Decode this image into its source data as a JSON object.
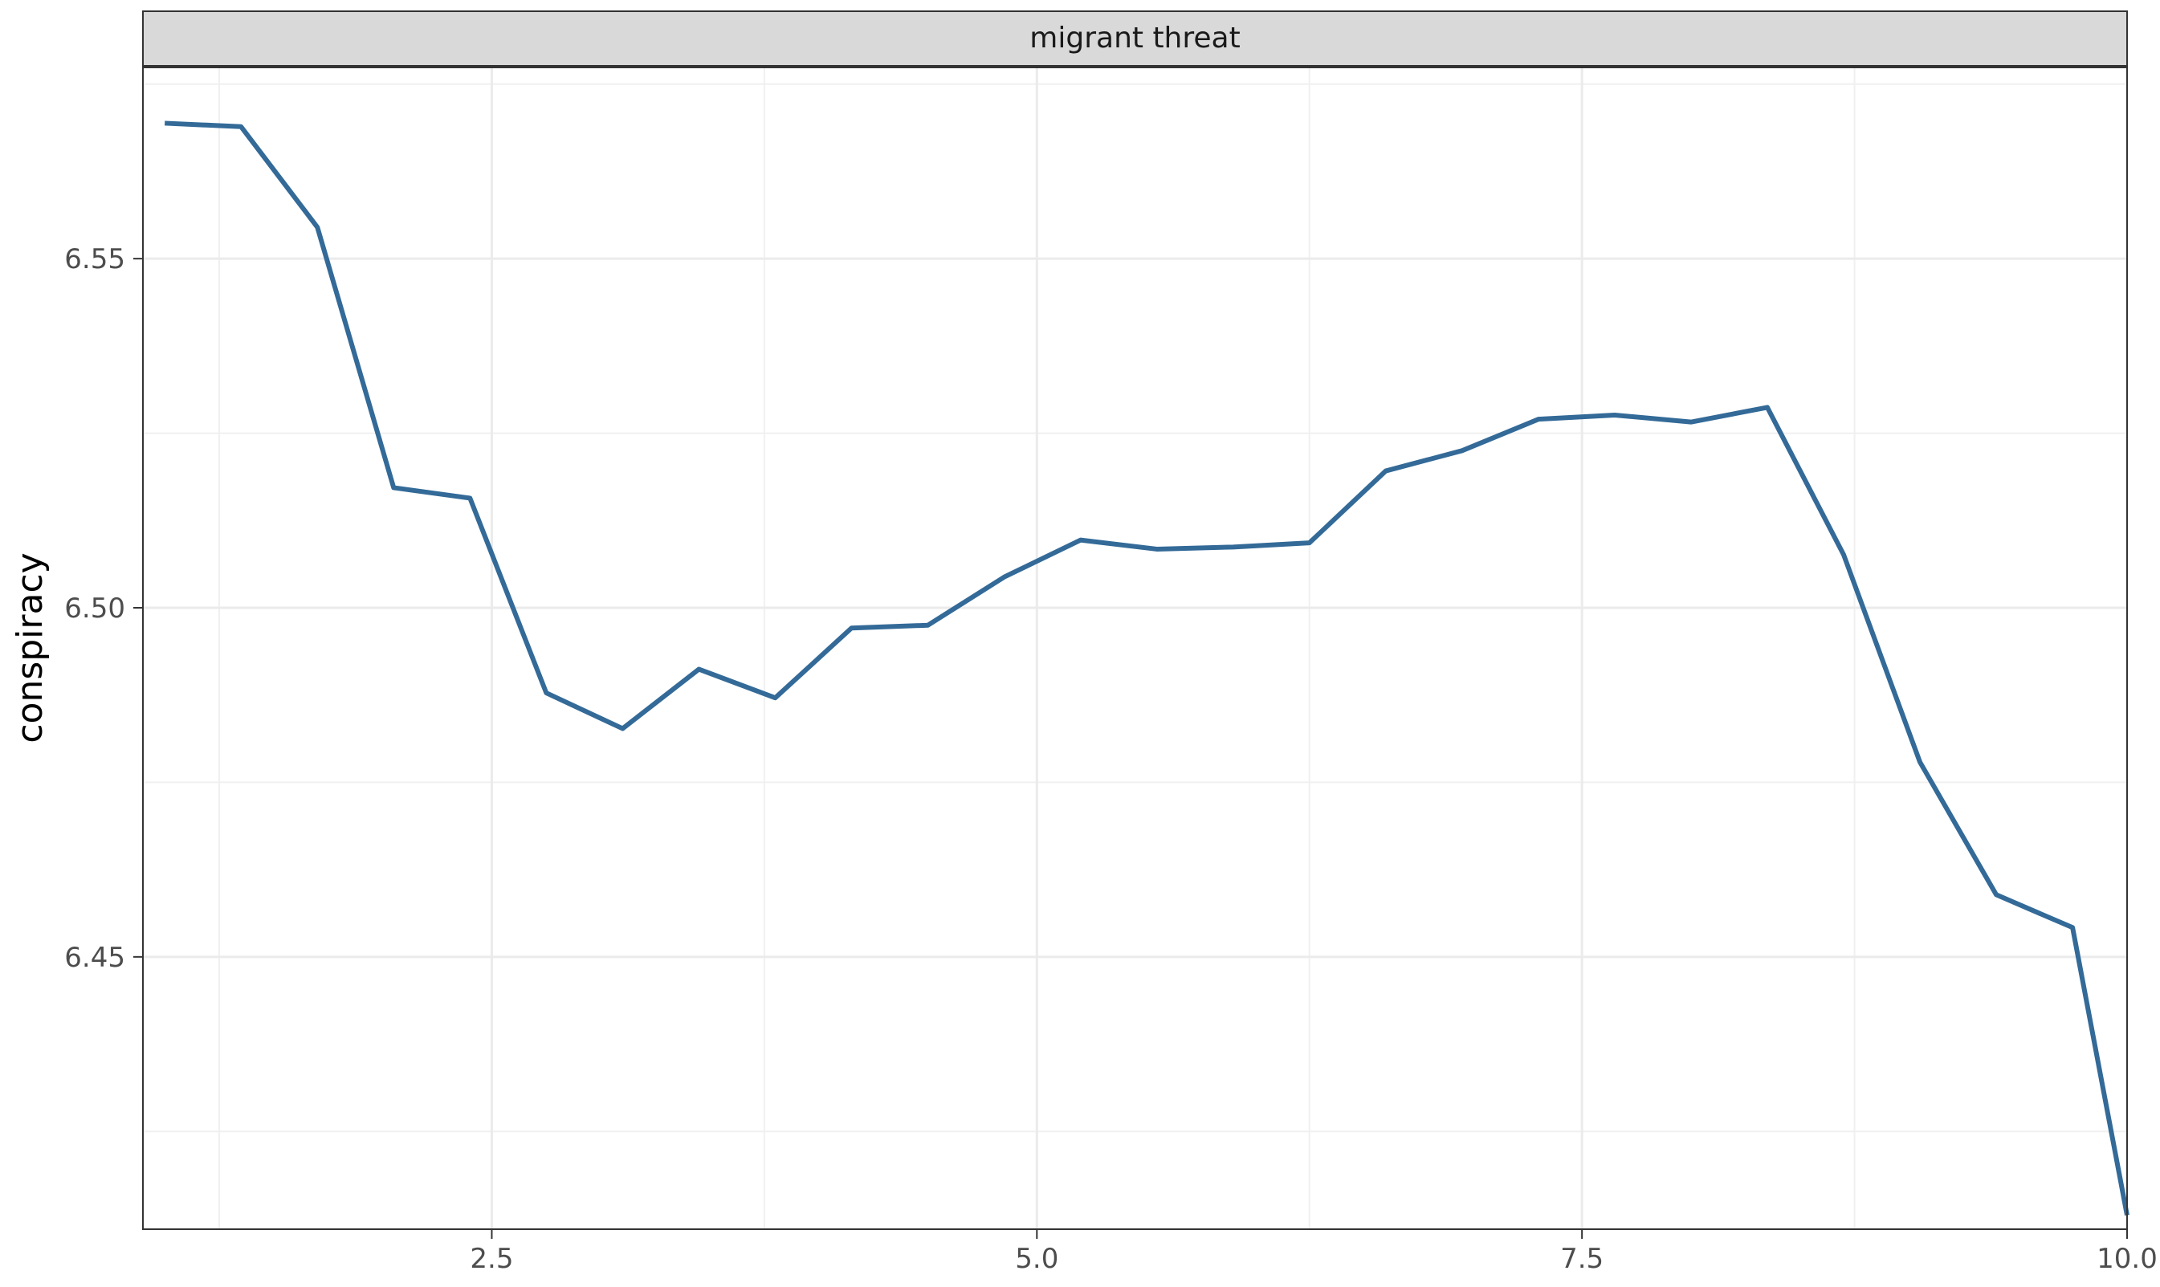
{
  "chart_data": {
    "type": "line",
    "facet_label": "migrant threat",
    "title": "",
    "xlabel": "",
    "ylabel": "conspiracy",
    "xlim": [
      0.9,
      10.0
    ],
    "ylim": [
      6.411,
      6.5775
    ],
    "x_ticks": [
      2.5,
      5.0,
      7.5,
      10.0
    ],
    "x_tick_labels": [
      "2.5",
      "5.0",
      "7.5",
      "10.0"
    ],
    "y_ticks": [
      6.45,
      6.5,
      6.55
    ],
    "y_tick_labels": [
      "6.45",
      "6.50",
      "6.55"
    ],
    "grid": true,
    "line_color": "#336a98",
    "series": [
      {
        "x": [
          1.0,
          1.35,
          1.7,
          2.05,
          2.4,
          2.75,
          3.1,
          3.45,
          3.8,
          4.15,
          4.5,
          4.85,
          5.2,
          5.55,
          5.9,
          6.25,
          6.6,
          6.95,
          7.3,
          7.65,
          8.0,
          8.35,
          8.7,
          9.05,
          9.4,
          9.75,
          10.0
        ],
        "y": [
          6.5694,
          6.5689,
          6.5545,
          6.5172,
          6.5157,
          6.4878,
          6.4827,
          6.4912,
          6.4871,
          6.4971,
          6.4975,
          6.5044,
          6.5097,
          6.5084,
          6.5087,
          6.5093,
          6.5196,
          6.5225,
          6.527,
          6.5276,
          6.5266,
          6.5287,
          6.5076,
          6.4779,
          6.4589,
          6.4542,
          6.413
        ]
      }
    ]
  }
}
